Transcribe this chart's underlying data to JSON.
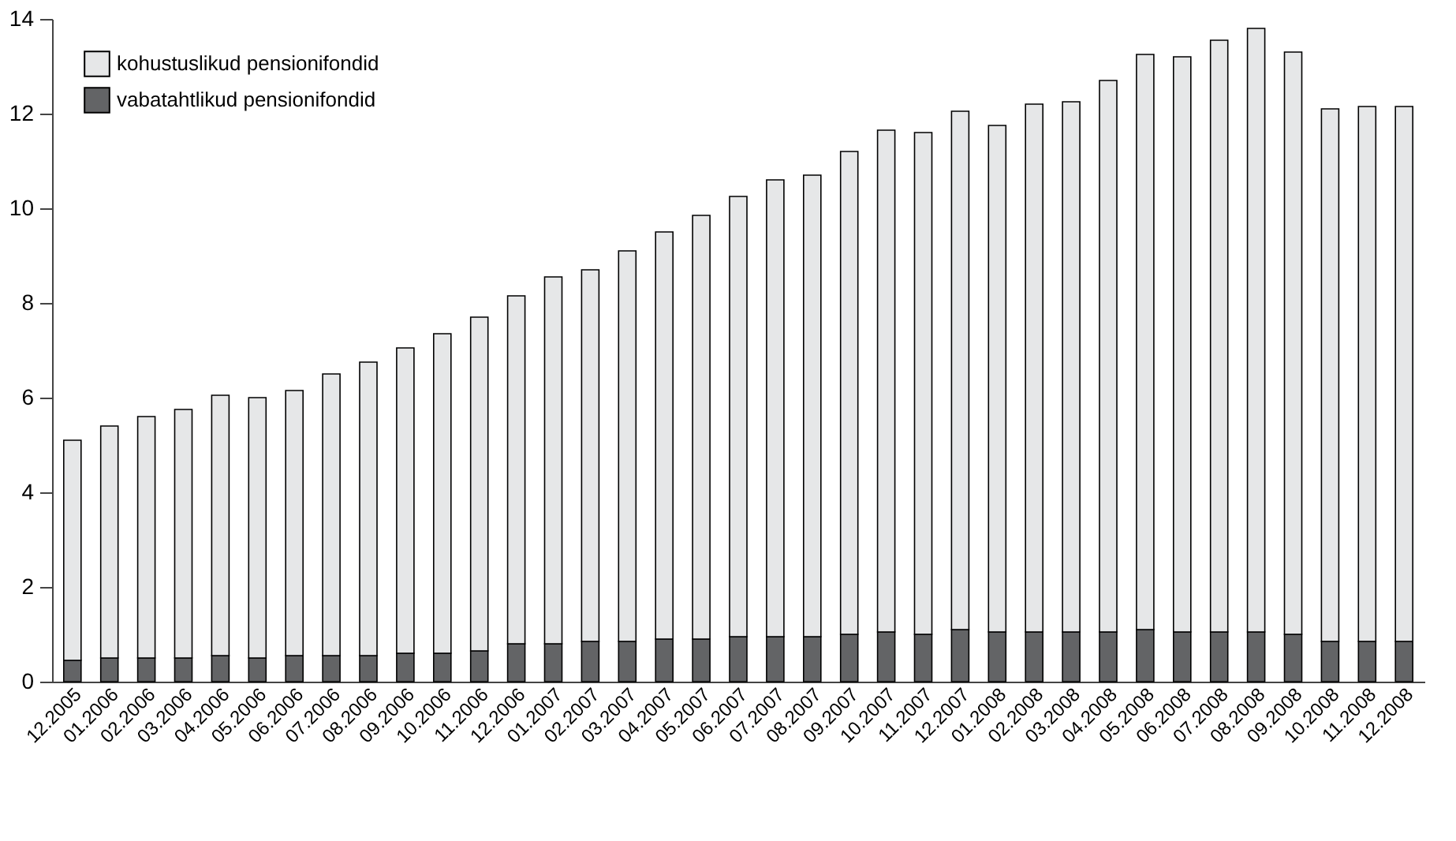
{
  "chart_data": {
    "type": "bar",
    "stacked": true,
    "categories": [
      "12.2005",
      "01.2006",
      "02.2006",
      "03.2006",
      "04.2006",
      "05.2006",
      "06.2006",
      "07.2006",
      "08.2006",
      "09.2006",
      "10.2006",
      "11.2006",
      "12.2006",
      "01.2007",
      "02.2007",
      "03.2007",
      "04.2007",
      "05.2007",
      "06.2007",
      "07.2007",
      "08.2007",
      "09.2007",
      "10.2007",
      "11.2007",
      "12.2007",
      "01.2008",
      "02.2008",
      "03.2008",
      "04.2008",
      "05.2008",
      "06.2008",
      "07.2008",
      "08.2008",
      "09.2008",
      "10.2008",
      "11.2008",
      "12.2008"
    ],
    "series": [
      {
        "name": "vabatahtlikud pensionifondid",
        "color": "#636466",
        "values": [
          0.45,
          0.5,
          0.5,
          0.5,
          0.55,
          0.5,
          0.55,
          0.55,
          0.55,
          0.6,
          0.6,
          0.65,
          0.8,
          0.8,
          0.85,
          0.85,
          0.9,
          0.9,
          0.95,
          0.95,
          0.95,
          1.0,
          1.05,
          1.0,
          1.1,
          1.05,
          1.05,
          1.05,
          1.05,
          1.1,
          1.05,
          1.05,
          1.05,
          1.0,
          0.85,
          0.85,
          0.85
        ]
      },
      {
        "name": "kohustuslikud pensionifondid",
        "color": "#e6e7e8",
        "values": [
          4.65,
          4.9,
          5.1,
          5.25,
          5.5,
          5.5,
          5.6,
          5.95,
          6.2,
          6.45,
          6.75,
          7.05,
          7.35,
          7.75,
          7.85,
          8.25,
          8.6,
          8.95,
          9.3,
          9.65,
          9.75,
          10.2,
          10.6,
          10.6,
          10.95,
          10.7,
          11.15,
          11.2,
          11.65,
          12.15,
          12.15,
          12.5,
          12.75,
          12.3,
          11.25,
          11.3,
          11.3
        ]
      }
    ],
    "ylim": [
      0,
      14
    ],
    "yticks": [
      0,
      2,
      4,
      6,
      8,
      10,
      12,
      14
    ],
    "grid": false,
    "legend": "top left"
  }
}
